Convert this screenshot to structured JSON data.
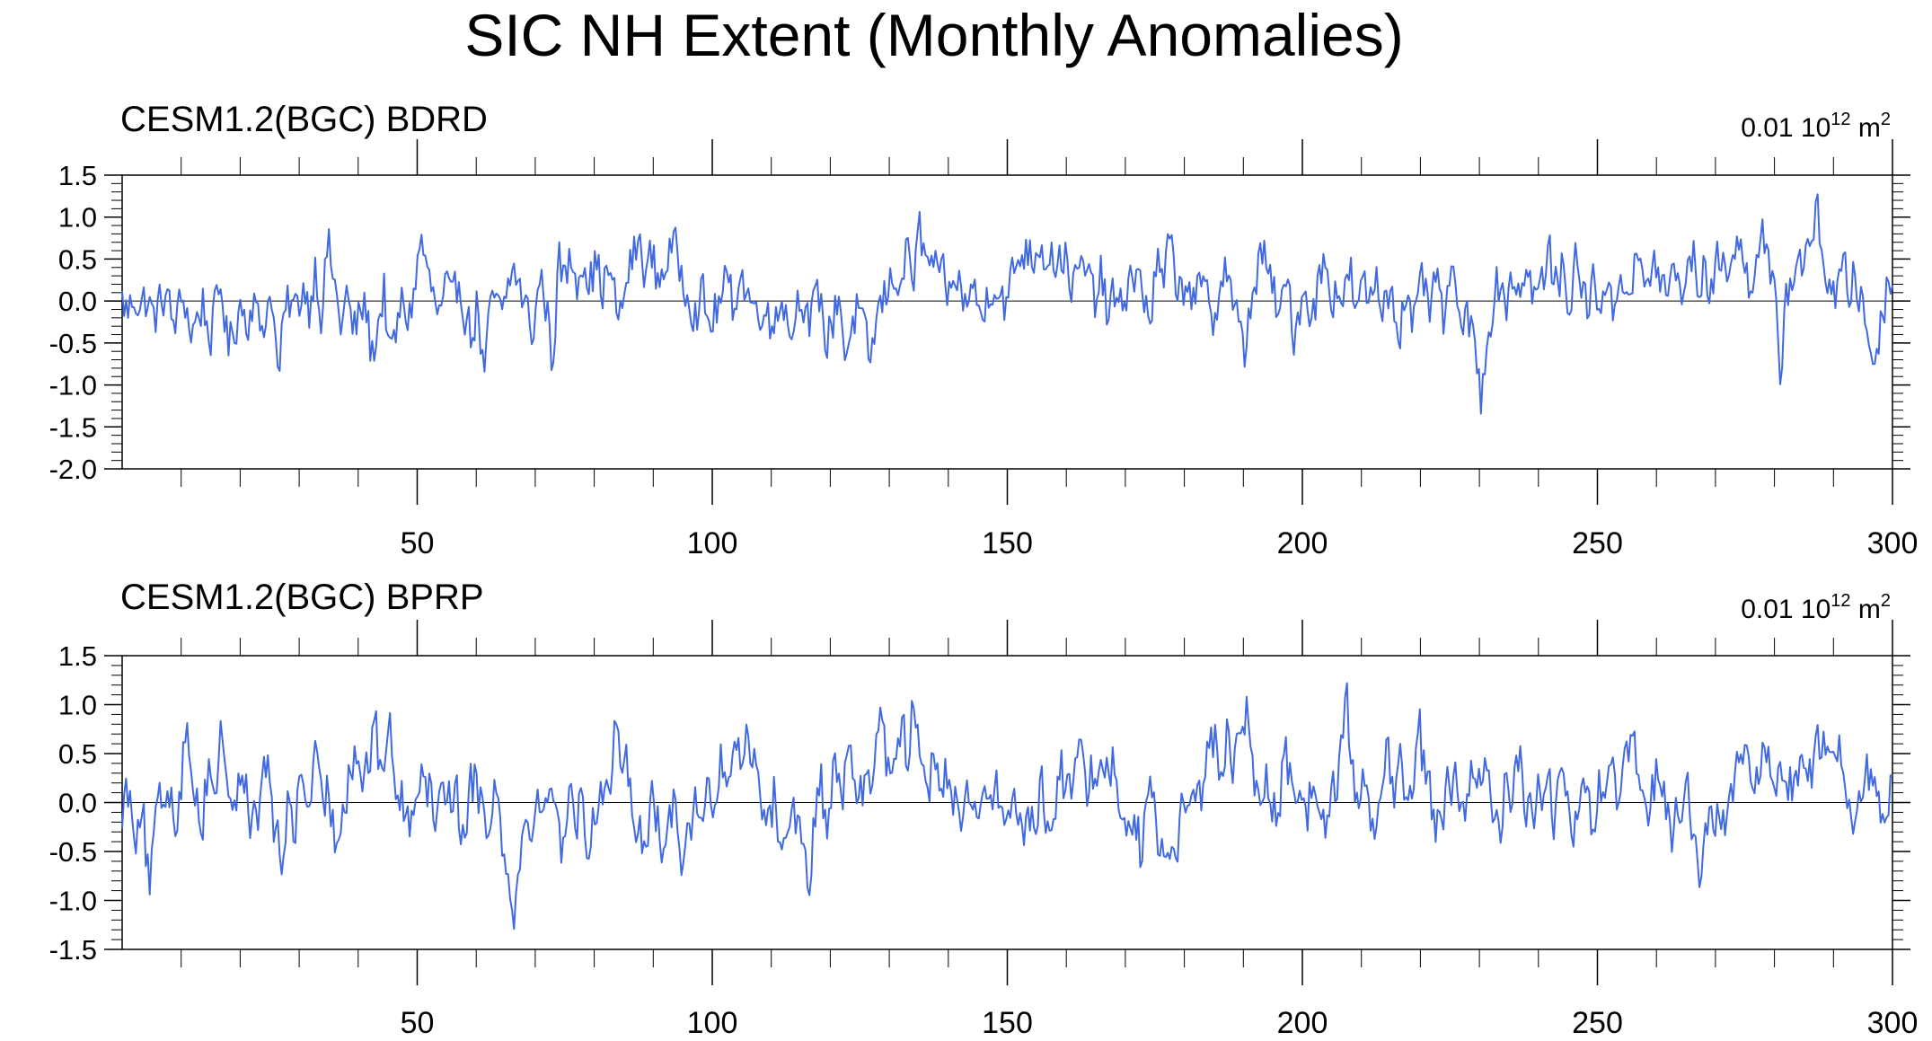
{
  "title": "SIC NH Extent (Monthly Anomalies)",
  "colors": {
    "line": "#4169e1",
    "axis": "#000000",
    "zero_line": "#000000",
    "background": "#ffffff"
  },
  "chart_data": [
    {
      "type": "line",
      "subtitle": "CESM1.2(BGC) BDRD",
      "units": {
        "prefix": "0.01 10",
        "exp": "12",
        "unit": " m",
        "unit_exp": "2"
      },
      "xlim": [
        0,
        300
      ],
      "x_ticks": [
        50,
        100,
        150,
        200,
        250,
        300
      ],
      "x_tick_labels": [
        "50",
        "100",
        "150",
        "200",
        "250",
        "300"
      ],
      "ylim": [
        -2.0,
        1.5
      ],
      "y_ticks": [
        1.5,
        1.0,
        0.5,
        0.0,
        -0.5,
        -1.0,
        -1.5,
        -2.0
      ],
      "y_tick_labels": [
        "1.5",
        "1.0",
        "0.5",
        "0.0",
        "-0.5",
        "-1.0",
        "-1.5",
        "-2.0"
      ],
      "reference_line": 0.0,
      "n_points": 900,
      "series": [
        {
          "x_start": 0,
          "x_end": 300,
          "values": [
            0.0,
            -0.2,
            0.15,
            -0.1,
            0.05,
            -0.3,
            -0.1,
            0.2,
            -0.4,
            -0.2,
            0.1,
            -0.5,
            -0.3,
            0.0,
            -0.6,
            -0.2,
            0.3,
            -0.8,
            -0.4,
            0.0,
            -0.3,
            0.1,
            -0.5,
            -0.2,
            0.2,
            -1.25,
            -0.3,
            0.0,
            -0.2,
            0.3,
            -0.1,
            0.6,
            -0.2,
            0.9,
            0.3,
            -0.4,
            0.1,
            -0.5,
            -0.3,
            0.0,
            -0.9,
            -0.4,
            0.2,
            -1.0,
            -0.5,
            0.0,
            -0.3,
            0.3,
            1.0,
            0.4,
            0.0,
            -0.3,
            0.2,
            -0.2,
            0.4,
            -0.1,
            -0.6,
            0.0,
            -1.2,
            -0.3,
            0.1,
            -0.4,
            0.3,
            0.5,
            0.1,
            -0.2,
            -0.5,
            0.4,
            0.0,
            -1.0,
            0.6,
            0.3,
            0.7,
            0.4,
            0.8,
            0.3,
            0.6,
            0.2,
            0.5,
            0.0,
            -0.3,
            0.4,
            0.7,
            0.9,
            0.5,
            0.7,
            0.3,
            0.6,
            0.8,
            0.7,
            0.4,
            0.2,
            -0.2,
            0.1,
            -0.4,
            -0.2,
            0.0,
            0.3,
            -0.1,
            0.5,
            0.2,
            0.0,
            -0.3,
            0.2,
            -0.6,
            0.0,
            0.1,
            -0.5,
            -0.2,
            0.3,
            -0.4,
            -0.2,
            0.1,
            -0.7,
            -0.3,
            0.2,
            -0.9,
            -0.4,
            -0.1,
            -0.6,
            -1.0,
            -0.3,
            0.0,
            0.2,
            0.5,
            0.3,
            0.8,
            0.4,
            1.1,
            0.5,
            0.7,
            0.2,
            0.3,
            0.0,
            0.5,
            -0.2,
            0.3,
            0.0,
            -0.3,
            0.2,
            0.4,
            0.1,
            -0.1,
            0.5,
            0.7,
            0.9,
            0.6,
            1.05,
            0.7,
            0.9,
            0.5,
            0.8,
            0.4,
            0.2,
            0.6,
            0.3,
            0.0,
            0.4,
            -0.2,
            0.1,
            -0.3,
            0.2,
            0.5,
            0.3,
            0.0,
            -0.2,
            0.6,
            0.2,
            0.9,
            0.4,
            0.1,
            0.5,
            -0.1,
            0.2,
            0.0,
            -0.3,
            0.3,
            0.6,
            0.1,
            -0.4,
            -0.9,
            0.0,
            0.4,
            0.8,
            0.3,
            0.0,
            -0.2,
            0.3,
            -0.5,
            0.0,
            0.2,
            -0.3,
            0.4,
            0.6,
            0.1,
            0.3,
            0.0,
            0.5,
            -0.3,
            0.2,
            0.0,
            0.4,
            -0.1,
            0.3,
            0.0,
            -0.4,
            0.2,
            -0.6,
            0.0,
            0.3,
            -0.2,
            0.4,
            -0.3,
            0.0,
            0.5,
            -0.6,
            -0.3,
            -0.8,
            -1.5,
            -0.5,
            0.1,
            0.3,
            0.0,
            0.4,
            0.2,
            0.5,
            0.3,
            0.0,
            0.4,
            0.7,
            0.2,
            0.5,
            0.0,
            0.6,
            0.3,
            -0.1,
            0.3,
            0.0,
            0.4,
            -0.3,
            0.3,
            0.5,
            0.1,
            0.7,
            0.2,
            0.4,
            0.6,
            0.3,
            0.0,
            0.5,
            0.2,
            0.4,
            0.7,
            0.3,
            0.5,
            0.1,
            0.6,
            0.9,
            0.4,
            1.0,
            0.6,
            0.3,
            0.7,
            1.2,
            0.5,
            0.0,
            -1.1,
            0.2,
            0.4,
            0.8,
            0.5,
            1.0,
            1.4,
            0.6,
            0.3,
            0.0,
            0.5,
            0.2,
            0.4,
            0.0,
            -0.5,
            -1.0,
            -0.4,
            0.2,
            0.3
          ]
        }
      ]
    },
    {
      "type": "line",
      "subtitle": "CESM1.2(BGC) BPRP",
      "units": {
        "prefix": "0.01 10",
        "exp": "12",
        "unit": " m",
        "unit_exp": "2"
      },
      "xlim": [
        0,
        300
      ],
      "x_ticks": [
        50,
        100,
        150,
        200,
        250,
        300
      ],
      "x_tick_labels": [
        "50",
        "100",
        "150",
        "200",
        "250",
        "300"
      ],
      "ylim": [
        -1.5,
        1.5
      ],
      "y_ticks": [
        1.5,
        1.0,
        0.5,
        0.0,
        -0.5,
        -1.0,
        -1.5
      ],
      "y_tick_labels": [
        "1.5",
        "1.0",
        "0.5",
        "0.0",
        "-0.5",
        "-1.0",
        "-1.5"
      ],
      "reference_line": 0.0,
      "n_points": 900,
      "series": [
        {
          "x_start": 0,
          "x_end": 300,
          "values": [
            0.0,
            0.2,
            -0.3,
            0.1,
            -1.2,
            -0.4,
            0.0,
            0.3,
            -0.2,
            0.5,
            0.9,
            0.2,
            -0.3,
            0.6,
            0.1,
            1.0,
            0.3,
            -0.2,
            0.5,
            0.0,
            -0.4,
            0.2,
            0.6,
            -0.5,
            -0.9,
            0.1,
            -0.3,
            0.4,
            0.0,
            0.5,
            -0.2,
            0.3,
            -0.6,
            0.0,
            0.4,
            0.8,
            0.3,
            0.6,
            0.9,
            0.4,
            1.15,
            0.3,
            0.0,
            -0.4,
            0.3,
            0.6,
            0.2,
            -0.2,
            0.5,
            0.0,
            0.3,
            -0.5,
            0.1,
            0.4,
            0.0,
            -0.2,
            0.3,
            -0.4,
            -0.9,
            -1.35,
            -0.6,
            0.0,
            -0.3,
            0.2,
            -0.2,
            0.3,
            -0.5,
            0.0,
            -0.3,
            0.2,
            -0.6,
            -0.2,
            0.4,
            0.1,
            0.8,
            0.3,
            0.5,
            0.0,
            -0.5,
            -0.2,
            0.1,
            -0.8,
            -0.4,
            0.2,
            -0.6,
            -0.3,
            0.0,
            -0.4,
            0.3,
            -0.2,
            0.5,
            0.2,
            0.9,
            0.5,
            1.05,
            0.6,
            0.2,
            -0.3,
            0.1,
            -0.6,
            -0.3,
            0.0,
            -0.5,
            -1.2,
            -0.4,
            0.2,
            -0.3,
            0.4,
            0.1,
            0.5,
            0.3,
            0.0,
            0.6,
            0.3,
            1.4,
            0.5,
            0.8,
            1.0,
            0.6,
            1.45,
            0.9,
            0.3,
            0.5,
            0.0,
            0.4,
            0.2,
            -0.2,
            0.3,
            -0.3,
            0.1,
            0.4,
            -0.1,
            0.2,
            -0.4,
            0.0,
            -0.2,
            -0.5,
            -0.1,
            0.2,
            -0.3,
            0.1,
            0.5,
            0.0,
            0.3,
            0.7,
            0.2,
            0.5,
            0.8,
            0.3,
            0.6,
            0.1,
            -0.3,
            0.0,
            -0.6,
            -0.2,
            0.1,
            -0.9,
            -0.4,
            -0.8,
            -0.3,
            0.2,
            0.5,
            0.1,
            0.6,
            0.9,
            0.3,
            1.0,
            0.5,
            0.8,
            1.25,
            0.4,
            0.0,
            0.3,
            -0.2,
            0.2,
            0.5,
            0.0,
            0.4,
            -0.2,
            0.3,
            0.0,
            -0.4,
            0.2,
            0.5,
            1.25,
            0.3,
            0.0,
            0.5,
            -0.3,
            0.2,
            0.6,
            0.1,
            0.4,
            -0.2,
            0.3,
            0.9,
            0.2,
            0.0,
            -0.5,
            0.1,
            0.3,
            0.0,
            -0.3,
            0.4,
            0.7,
            0.2,
            0.0,
            -0.4,
            0.3,
            0.1,
            0.5,
            0.0,
            -0.3,
            0.2,
            0.4,
            -0.2,
            0.0,
            0.3,
            -0.5,
            -0.2,
            0.1,
            -0.4,
            0.2,
            0.0,
            0.3,
            -0.2,
            0.5,
            0.9,
            0.1,
            -0.3,
            0.2,
            0.4,
            0.0,
            -0.5,
            -0.1,
            0.2,
            -0.3,
            -1.25,
            -0.6,
            -0.2,
            0.1,
            -0.4,
            0.2,
            0.5,
            0.8,
            0.3,
            0.6,
            0.4,
            0.7,
            0.2,
            0.5,
            0.3,
            0.6,
            0.2,
            0.4,
            0.9,
            0.5,
            0.2,
            0.6,
            0.3,
            0.0,
            -0.2,
            0.3,
            0.5,
            0.0,
            -0.3,
            0.2
          ]
        }
      ]
    }
  ]
}
